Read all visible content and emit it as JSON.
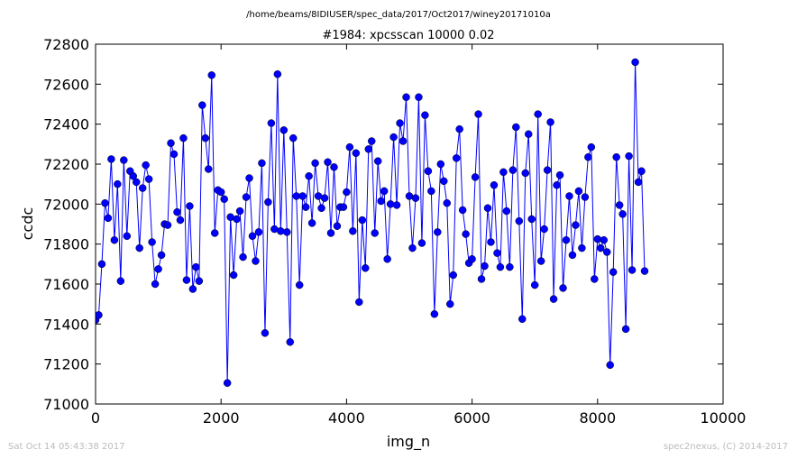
{
  "figure": {
    "path_title": "/home/beams/8IDIUSER/spec_data/2017/Oct2017/winey20171010a",
    "footer_left": "Sat Oct 14 05:43:38 2017",
    "footer_right": "spec2nexus, (C) 2014-2017"
  },
  "chart_data": {
    "type": "line",
    "title": "#1984: xpcsscan 10000 0.02",
    "xlabel": "img_n",
    "ylabel": "ccdc",
    "xlim": [
      0,
      10000
    ],
    "ylim": [
      71000,
      72800
    ],
    "xticks": [
      0,
      2000,
      4000,
      6000,
      8000,
      10000
    ],
    "yticks": [
      71000,
      71200,
      71400,
      71600,
      71800,
      72000,
      72200,
      72400,
      72600,
      72800
    ],
    "grid": false,
    "marker": "circle",
    "line_color": "#0000ff",
    "marker_color": "#0000ff",
    "x_step": 50,
    "values": [
      71420,
      71445,
      71700,
      72005,
      71930,
      72225,
      71820,
      72100,
      71615,
      72220,
      71840,
      72165,
      72140,
      72110,
      71780,
      72080,
      72195,
      72125,
      71810,
      71600,
      71675,
      71745,
      71900,
      71895,
      72305,
      72250,
      71960,
      71920,
      72330,
      71620,
      71990,
      71575,
      71685,
      71615,
      72495,
      72330,
      72175,
      72645,
      71855,
      72070,
      72060,
      72025,
      71105,
      71935,
      71645,
      71925,
      71965,
      71735,
      72035,
      72130,
      71840,
      71715,
      71860,
      72205,
      71355,
      72010,
      72405,
      71875,
      72650,
      71865,
      72370,
      71860,
      71310,
      72330,
      72040,
      71595,
      72040,
      71985,
      72140,
      71905,
      72205,
      72040,
      71980,
      72030,
      72210,
      71855,
      72185,
      71890,
      71985,
      71985,
      72060,
      72285,
      71865,
      72255,
      71510,
      71920,
      71680,
      72275,
      72315,
      71855,
      72215,
      72015,
      72065,
      71725,
      72000,
      72335,
      71995,
      72405,
      72315,
      72535,
      72040,
      71780,
      72030,
      72535,
      71805,
      72445,
      72165,
      72065,
      71450,
      71860,
      72200,
      72115,
      72005,
      71500,
      71645,
      72230,
      72375,
      71970,
      71850,
      71705,
      71725,
      72135,
      72450,
      71625,
      71690,
      71980,
      71810,
      72095,
      71755,
      71685,
      72160,
      71965,
      71685,
      72170,
      72385,
      71915,
      71425,
      72155,
      72350,
      71925,
      71595,
      72450,
      71715,
      71875,
      72170,
      72410,
      71525,
      72095,
      72145,
      71580,
      71820,
      72040,
      71745,
      71895,
      72065,
      71780,
      72035,
      72235,
      72285,
      71625,
      71825,
      71780,
      71820,
      71760,
      71195,
      71660,
      72235,
      71995,
      71950,
      71375,
      72240,
      71670,
      72710,
      72110,
      72165,
      71665
    ]
  }
}
